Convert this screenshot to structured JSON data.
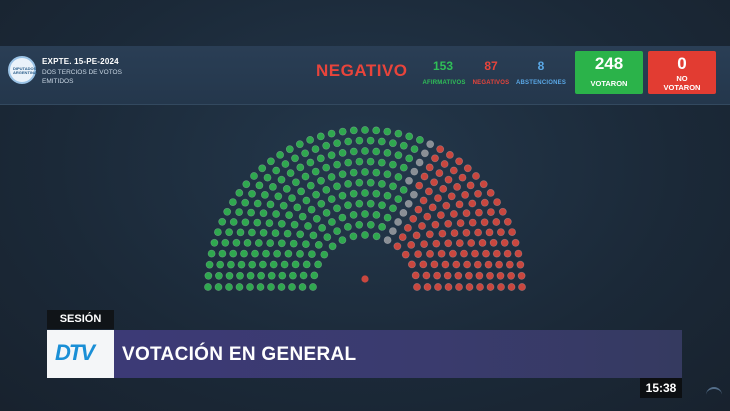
{
  "header": {
    "logo_text": "DIPUTADOS ARGENTINA",
    "expediente": "EXPTE. 15-PE-2024",
    "description": "DOS TERCIOS DE VOTOS EMITIDOS",
    "result": "NEGATIVO",
    "counts": [
      {
        "value": "153",
        "label": "AFIRMATIVOS",
        "color": "#2fbf57"
      },
      {
        "value": "87",
        "label": "NEGATIVOS",
        "color": "#e8443b"
      },
      {
        "value": "8",
        "label": "ABSTENCIONES",
        "color": "#5aa8e6"
      }
    ],
    "voted": {
      "value": "248",
      "label": "VOTARON",
      "color": "#2bb34a"
    },
    "not_voted": {
      "value": "0",
      "label_line1": "NO",
      "label_line2": "VOTARON",
      "color": "#e23c32"
    }
  },
  "chamber": {
    "tallies": {
      "afirmativo": 153,
      "negativo": 87,
      "abstencion": 8
    },
    "colors": {
      "afirmativo": "#2fa84f",
      "negativo": "#c9473f",
      "abstencion": "#8a8f96",
      "center": "#c9473f"
    }
  },
  "lower_third": {
    "tag": "SESIÓN",
    "channel_logo": "DTV",
    "title": "VOTACIÓN EN GENERAL"
  },
  "clock": "15:38"
}
